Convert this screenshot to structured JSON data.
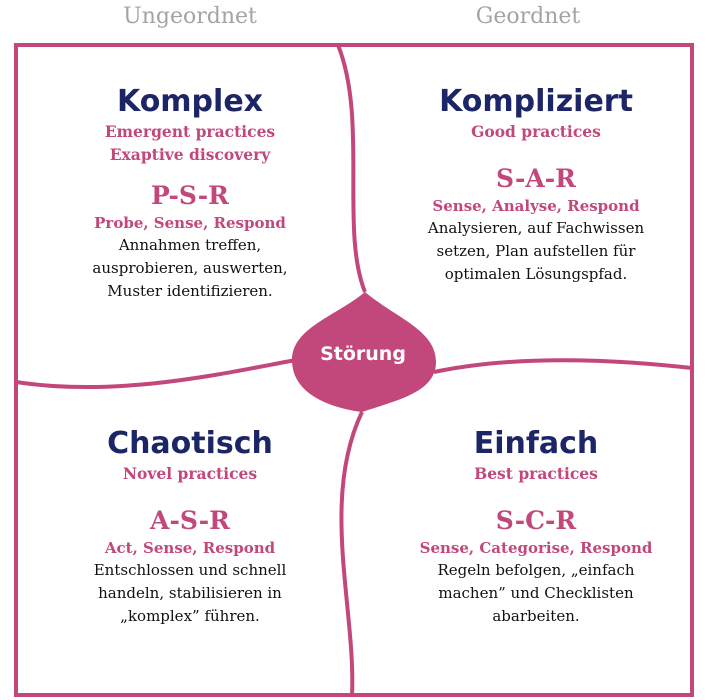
{
  "headers": {
    "left": "Ungeordnet",
    "right": "Geordnet"
  },
  "colors": {
    "accent": "#c2477b",
    "title": "#1c2566",
    "header": "#a4a4a4",
    "text": "#111111"
  },
  "center": {
    "label": "Störung"
  },
  "quadrants": {
    "komplex": {
      "title": "Komplex",
      "practices": [
        "Emergent practices",
        "Exaptive discovery"
      ],
      "code": "P-S-R",
      "method": "Probe, Sense, Respond",
      "description": [
        "Annahmen treffen,",
        "ausprobieren, auswerten,",
        "Muster identifizieren."
      ]
    },
    "kompliziert": {
      "title": "Kompliziert",
      "practices": [
        "Good practices"
      ],
      "code": "S-A-R",
      "method": "Sense, Analyse, Respond",
      "description": [
        "Analysieren, auf Fachwissen",
        "setzen, Plan aufstellen für",
        "optimalen Lösungspfad."
      ]
    },
    "chaotisch": {
      "title": "Chaotisch",
      "practices": [
        "Novel practices"
      ],
      "code": "A-S-R",
      "method": "Act, Sense, Respond",
      "description": [
        "Entschlossen und schnell",
        "handeln, stabilisieren in",
        "„komplex” führen."
      ]
    },
    "einfach": {
      "title": "Einfach",
      "practices": [
        "Best practices"
      ],
      "code": "S-C-R",
      "method": "Sense, Categorise, Respond",
      "description": [
        "Regeln befolgen, „einfach",
        "machen” und Checklisten",
        "abarbeiten."
      ]
    }
  }
}
